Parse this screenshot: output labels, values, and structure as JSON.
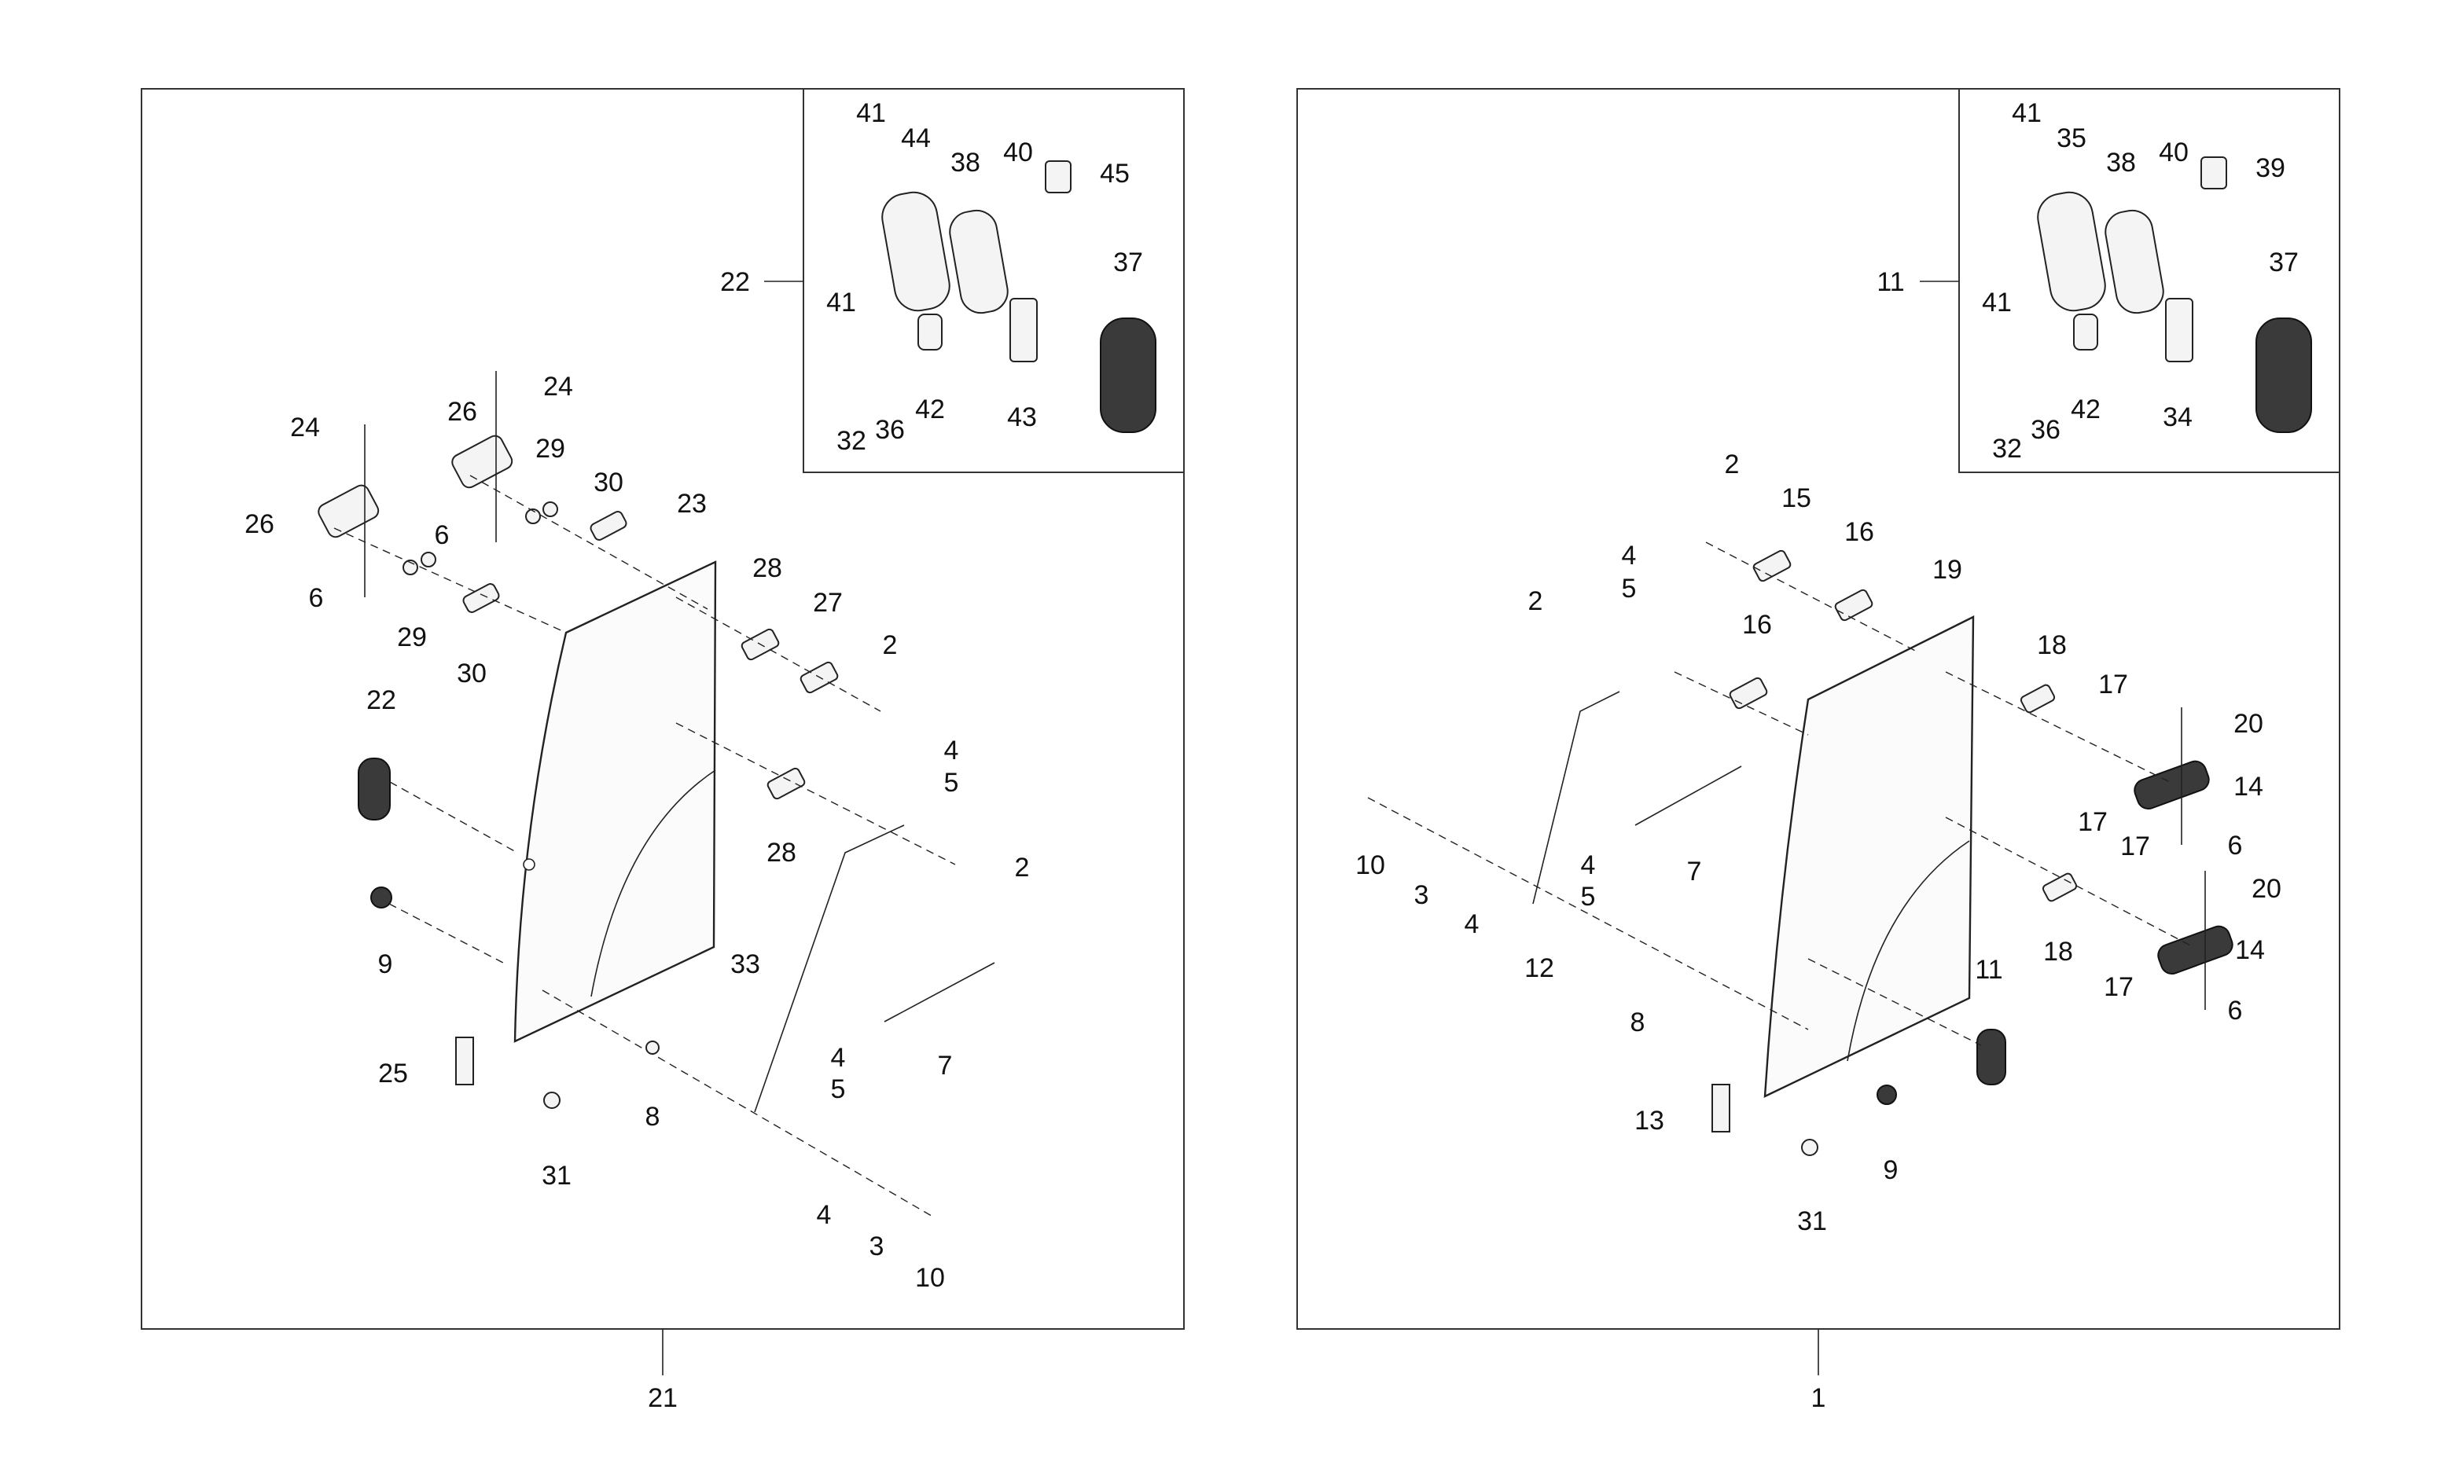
{
  "colors": {
    "ink": "#222222",
    "background": "#ffffff"
  },
  "assemblies": [
    {
      "assembly_number": "21",
      "parts": [
        "41",
        "44",
        "38",
        "40",
        "45",
        "22",
        "41",
        "37",
        "32",
        "36",
        "42",
        "43",
        "24",
        "26",
        "24",
        "29",
        "30",
        "23",
        "26",
        "6",
        "6",
        "29",
        "30",
        "28",
        "27",
        "2",
        "22",
        "4",
        "5",
        "28",
        "2",
        "9",
        "33",
        "4",
        "7",
        "5",
        "25",
        "8",
        "31",
        "4",
        "3",
        "10"
      ]
    },
    {
      "assembly_number": "1",
      "parts": [
        "41",
        "35",
        "38",
        "40",
        "39",
        "11",
        "41",
        "37",
        "32",
        "36",
        "42",
        "34",
        "2",
        "15",
        "16",
        "4",
        "5",
        "19",
        "2",
        "16",
        "18",
        "17",
        "20",
        "14",
        "17",
        "6",
        "10",
        "3",
        "4",
        "7",
        "4",
        "5",
        "12",
        "8",
        "17",
        "20",
        "18",
        "14",
        "17",
        "6",
        "11",
        "13",
        "9",
        "31"
      ]
    }
  ]
}
